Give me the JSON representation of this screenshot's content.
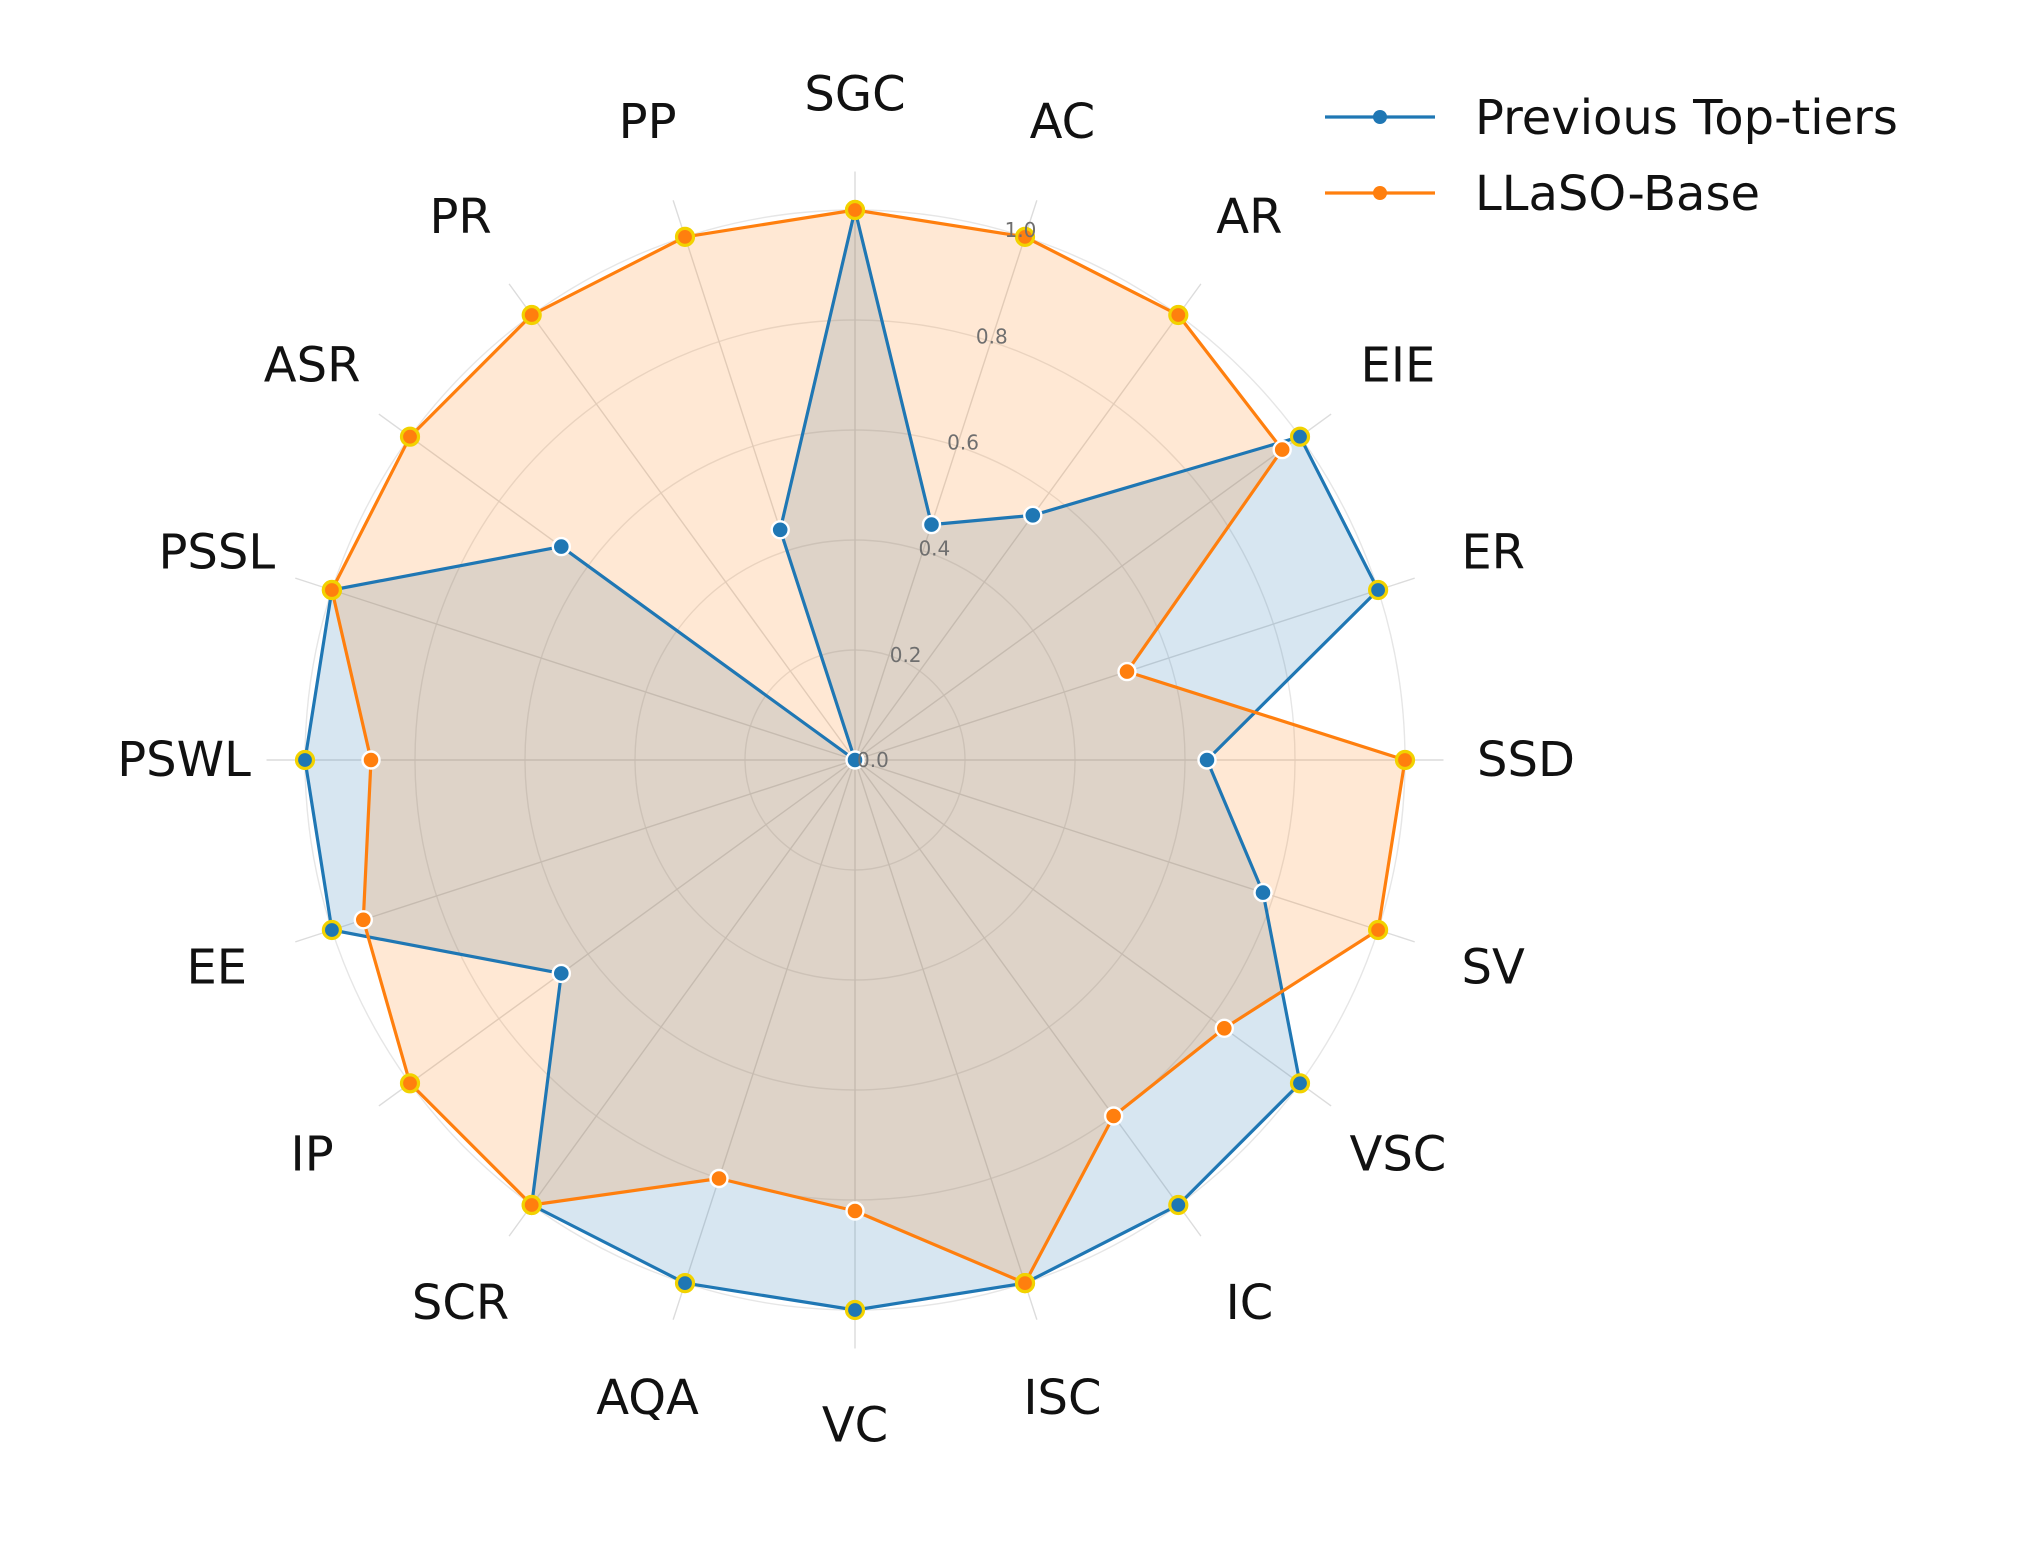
{
  "chart_data": {
    "type": "radar",
    "title": "",
    "categories": [
      "SGC",
      "AC",
      "AR",
      "EIE",
      "ER",
      "SSD",
      "SV",
      "VSC",
      "IC",
      "ISC",
      "VC",
      "AQA",
      "SCR",
      "IP",
      "EE",
      "PSWL",
      "PSSL",
      "ASR",
      "PR",
      "PP"
    ],
    "radial_ticks": [
      "0.0",
      "0.2",
      "0.4",
      "0.6",
      "0.8",
      "1.0"
    ],
    "rlim": [
      0,
      1.0
    ],
    "grid": true,
    "legend_position": "top-right",
    "series": [
      {
        "name": "Previous Top-tiers",
        "color": "#1f77b4",
        "values": [
          1.0,
          0.45,
          0.55,
          1.0,
          1.0,
          0.64,
          0.78,
          1.0,
          1.0,
          1.0,
          1.0,
          1.0,
          1.0,
          0.66,
          1.0,
          1.0,
          1.0,
          0.66,
          0.0,
          0.44
        ]
      },
      {
        "name": "LLaSO-Base",
        "color": "#ff7f0e",
        "values": [
          1.0,
          1.0,
          1.0,
          0.96,
          0.52,
          1.0,
          1.0,
          0.83,
          0.8,
          1.0,
          0.82,
          0.8,
          1.0,
          1.0,
          0.94,
          0.88,
          1.0,
          1.0,
          1.0,
          1.0
        ]
      }
    ]
  }
}
